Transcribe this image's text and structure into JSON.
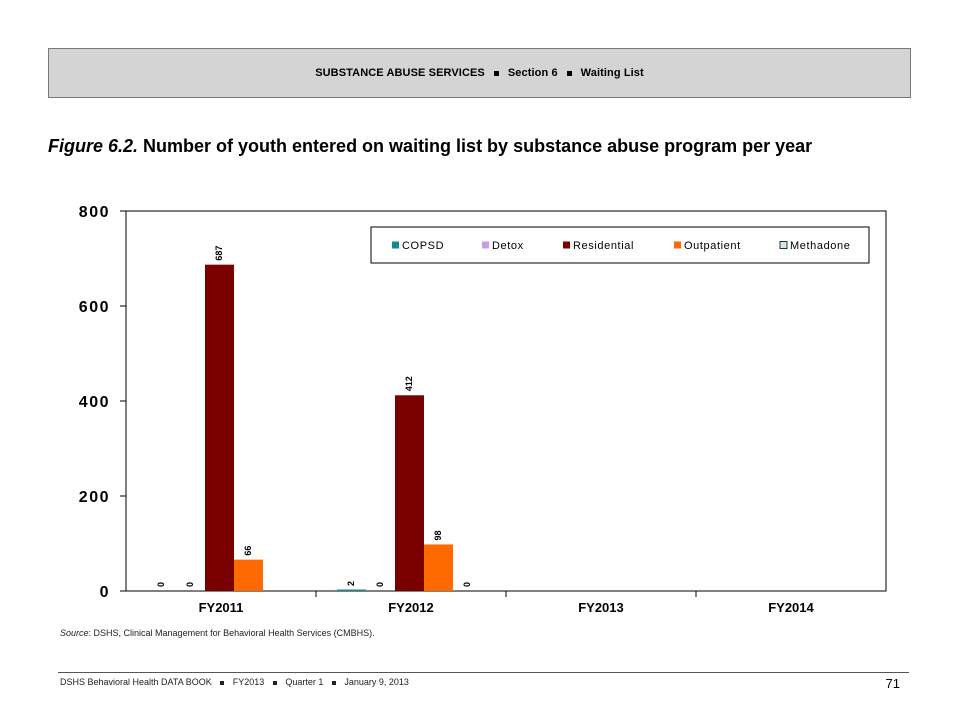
{
  "header": {
    "parts": [
      "SUBSTANCE ABUSE SERVICES",
      "Section 6",
      "Waiting List"
    ]
  },
  "figure": {
    "label": "Figure 6.2.",
    "title": "Number of youth entered on waiting list by substance abuse program per year"
  },
  "chart_data": {
    "type": "bar",
    "categories": [
      "FY2011",
      "FY2012",
      "FY2013",
      "FY2014"
    ],
    "series": [
      {
        "name": "COPSD",
        "color": "#148a8a",
        "values": [
          0,
          2,
          null,
          null
        ]
      },
      {
        "name": "Detox",
        "color": "#c99be8",
        "values": [
          0,
          0,
          null,
          null
        ]
      },
      {
        "name": "Residential",
        "color": "#7a0000",
        "values": [
          687,
          412,
          null,
          null
        ]
      },
      {
        "name": "Outpatient",
        "color": "#ff6a00",
        "values": [
          66,
          98,
          null,
          null
        ]
      },
      {
        "name": "Methadone",
        "color": "#cfe8f0",
        "values": [
          null,
          0,
          null,
          null
        ]
      }
    ],
    "data_labels": [
      [
        "0",
        "0",
        "687",
        "66",
        ""
      ],
      [
        "2",
        "0",
        "412",
        "98",
        "0"
      ],
      [
        "",
        "",
        "",
        "",
        ""
      ],
      [
        "",
        "",
        "",
        "",
        ""
      ]
    ],
    "y_ticks": [
      "0",
      "200",
      "400",
      "600",
      "800"
    ],
    "ylim": [
      0,
      800
    ],
    "legend_position": "top-right"
  },
  "source": {
    "label": "Source",
    "text": ": DSHS, Clinical Management for Behavioral Health Services (CMBHS)."
  },
  "footer": {
    "parts": [
      "DSHS Behavioral Health DATA BOOK",
      "FY2013",
      "Quarter 1",
      "January  9, 2013"
    ],
    "page_number": "71"
  }
}
